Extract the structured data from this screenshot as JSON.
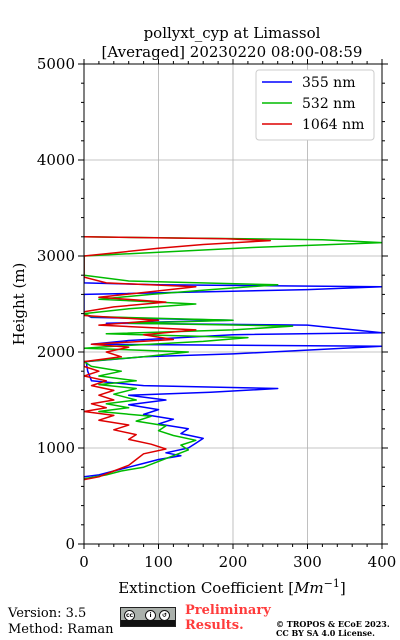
{
  "chart_data": {
    "type": "line",
    "title": "pollyxt_cyp at Limassol",
    "subtitle": "[Averaged] 20230220 08:00-08:59",
    "xlabel": "Extinction Coefficient",
    "xlabel_unit_base": "Mm",
    "xlabel_unit_exp": "−1",
    "ylabel": "Height (m)",
    "xlim": [
      0,
      400
    ],
    "ylim": [
      0,
      5000
    ],
    "xticks": [
      0,
      100,
      200,
      300,
      400
    ],
    "yticks": [
      0,
      1000,
      2000,
      3000,
      4000,
      5000
    ],
    "grid": true,
    "legend_position": "top-right",
    "series": [
      {
        "name": "355 nm",
        "color": "#0000ff",
        "points": [
          [
            0,
            700
          ],
          [
            20,
            720
          ],
          [
            40,
            760
          ],
          [
            60,
            800
          ],
          [
            80,
            840
          ],
          [
            100,
            880
          ],
          [
            130,
            920
          ],
          [
            110,
            950
          ],
          [
            140,
            1000
          ],
          [
            150,
            1050
          ],
          [
            160,
            1100
          ],
          [
            130,
            1150
          ],
          [
            140,
            1200
          ],
          [
            100,
            1250
          ],
          [
            120,
            1300
          ],
          [
            80,
            1350
          ],
          [
            100,
            1400
          ],
          [
            60,
            1450
          ],
          [
            110,
            1500
          ],
          [
            60,
            1550
          ],
          [
            170,
            1580
          ],
          [
            260,
            1620
          ],
          [
            80,
            1650
          ],
          [
            10,
            1700
          ],
          [
            5,
            1800
          ],
          [
            3,
            1900
          ],
          [
            80,
            1950
          ],
          [
            200,
            1980
          ],
          [
            400,
            2060
          ],
          [
            10,
            2080
          ],
          [
            60,
            2120
          ],
          [
            200,
            2180
          ],
          [
            400,
            2200
          ],
          [
            300,
            2280
          ],
          [
            30,
            2300
          ],
          [
            200,
            2330
          ],
          [
            10,
            2360
          ],
          [
            0,
            2400
          ],
          [
            0,
            2500
          ],
          [
            0,
            2600
          ],
          [
            300,
            2650
          ],
          [
            400,
            2680
          ],
          [
            100,
            2700
          ],
          [
            0,
            2720
          ],
          [
            0,
            2800
          ],
          [
            0,
            3000
          ]
        ]
      },
      {
        "name": "532 nm",
        "color": "#00bb00",
        "points": [
          [
            0,
            680
          ],
          [
            30,
            720
          ],
          [
            50,
            760
          ],
          [
            80,
            800
          ],
          [
            100,
            860
          ],
          [
            120,
            920
          ],
          [
            140,
            980
          ],
          [
            130,
            1030
          ],
          [
            150,
            1080
          ],
          [
            120,
            1130
          ],
          [
            100,
            1180
          ],
          [
            110,
            1230
          ],
          [
            70,
            1280
          ],
          [
            90,
            1330
          ],
          [
            20,
            1380
          ],
          [
            60,
            1420
          ],
          [
            30,
            1460
          ],
          [
            70,
            1500
          ],
          [
            40,
            1560
          ],
          [
            70,
            1620
          ],
          [
            20,
            1660
          ],
          [
            70,
            1700
          ],
          [
            20,
            1750
          ],
          [
            50,
            1800
          ],
          [
            10,
            1850
          ],
          [
            0,
            1900
          ],
          [
            80,
            1950
          ],
          [
            140,
            2000
          ],
          [
            0,
            2040
          ],
          [
            40,
            2060
          ],
          [
            160,
            2110
          ],
          [
            220,
            2150
          ],
          [
            30,
            2190
          ],
          [
            200,
            2230
          ],
          [
            280,
            2270
          ],
          [
            60,
            2300
          ],
          [
            200,
            2330
          ],
          [
            10,
            2370
          ],
          [
            0,
            2400
          ],
          [
            60,
            2450
          ],
          [
            150,
            2500
          ],
          [
            20,
            2550
          ],
          [
            90,
            2600
          ],
          [
            170,
            2650
          ],
          [
            260,
            2700
          ],
          [
            60,
            2740
          ],
          [
            0,
            2800
          ],
          [
            0,
            3000
          ],
          [
            230,
            3090
          ],
          [
            400,
            3140
          ],
          [
            320,
            3170
          ],
          [
            0,
            3200
          ]
        ]
      },
      {
        "name": "1064 nm",
        "color": "#dd0000",
        "points": [
          [
            0,
            670
          ],
          [
            20,
            700
          ],
          [
            40,
            760
          ],
          [
            60,
            820
          ],
          [
            70,
            880
          ],
          [
            80,
            940
          ],
          [
            110,
            990
          ],
          [
            90,
            1040
          ],
          [
            60,
            1090
          ],
          [
            70,
            1140
          ],
          [
            40,
            1190
          ],
          [
            60,
            1240
          ],
          [
            20,
            1290
          ],
          [
            40,
            1340
          ],
          [
            0,
            1380
          ],
          [
            30,
            1420
          ],
          [
            10,
            1460
          ],
          [
            40,
            1500
          ],
          [
            20,
            1550
          ],
          [
            40,
            1600
          ],
          [
            10,
            1650
          ],
          [
            30,
            1700
          ],
          [
            0,
            1750
          ],
          [
            20,
            1800
          ],
          [
            0,
            1850
          ],
          [
            0,
            1900
          ],
          [
            50,
            1950
          ],
          [
            30,
            2000
          ],
          [
            60,
            2050
          ],
          [
            10,
            2080
          ],
          [
            120,
            2130
          ],
          [
            80,
            2180
          ],
          [
            150,
            2230
          ],
          [
            20,
            2280
          ],
          [
            100,
            2330
          ],
          [
            0,
            2380
          ],
          [
            0,
            2420
          ],
          [
            40,
            2470
          ],
          [
            110,
            2520
          ],
          [
            20,
            2570
          ],
          [
            80,
            2620
          ],
          [
            150,
            2680
          ],
          [
            30,
            2720
          ],
          [
            0,
            2780
          ],
          [
            0,
            3000
          ],
          [
            100,
            3080
          ],
          [
            160,
            3120
          ],
          [
            250,
            3160
          ],
          [
            190,
            3180
          ],
          [
            0,
            3200
          ]
        ]
      }
    ]
  },
  "footer": {
    "version": "Version: 3.5",
    "method": "Method: Raman",
    "preliminary_line1": "Preliminary",
    "preliminary_line2": "Results.",
    "copyright": "© TROPOS & ECoE 2023.",
    "license": "CC BY SA 4.0 License.",
    "cc_badge_icon": "cc-by-sa-badge-icon"
  }
}
